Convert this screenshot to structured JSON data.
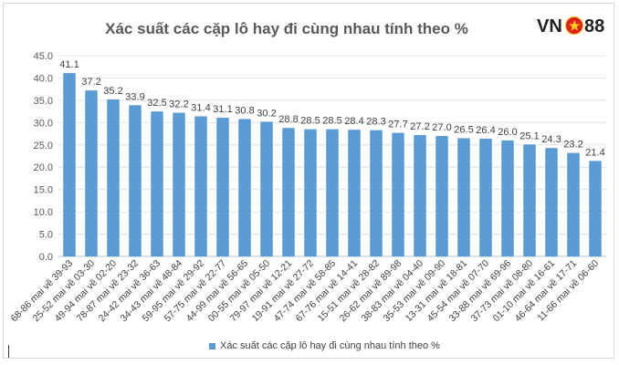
{
  "chart_data": {
    "type": "bar",
    "title": "Xác suất các cặp lô hay đi cùng nhau tính theo %",
    "categories": [
      "68-86 mai về 39-93",
      "25-52 mai về 03-30",
      "49-94 mai về 02-20",
      "78-87 mai về 23-32",
      "24-42 mai về 36-63",
      "34-43 mai về 48-84",
      "59-95 mai về 29-92",
      "57-75 mai về 22-77",
      "44-99 mai về 56-65",
      "00-55 mai về 05-50",
      "79-97 mai về 12-21",
      "19-91 mai về 27-72",
      "47-74 mai về 58-85",
      "67-76 mai về 14-41",
      "15-51 mai về 28-82",
      "26-62 mai về 89-98",
      "38-83 mai về 04-40",
      "35-53 mai về 09-90",
      "13-31 mai về 18-81",
      "45-54 mai về 07-70",
      "33-88 mai về 69-96",
      "37-73 mai về 08-80",
      "01-10 mai về 16-61",
      "46-64 mai về 17-71",
      "11-66 mai về 06-60"
    ],
    "series": [
      {
        "name": "Xác suất các cặp lô hay đi cùng nhau tính theo %",
        "values": [
          41.1,
          37.2,
          35.2,
          33.9,
          32.5,
          32.2,
          31.4,
          31.1,
          30.8,
          30.2,
          28.8,
          28.5,
          28.5,
          28.4,
          28.3,
          27.7,
          27.2,
          27.0,
          26.5,
          26.4,
          26.0,
          25.1,
          24.3,
          23.2,
          21.4
        ]
      }
    ],
    "ylim": [
      0,
      45
    ],
    "yticks": [
      0,
      5,
      10,
      15,
      20,
      25,
      30,
      35,
      40,
      45
    ],
    "grid": true,
    "legend_position": "bottom",
    "bar_color": "#5b9bd5"
  },
  "logo": {
    "left": "VN",
    "right": "88",
    "star": "★"
  }
}
